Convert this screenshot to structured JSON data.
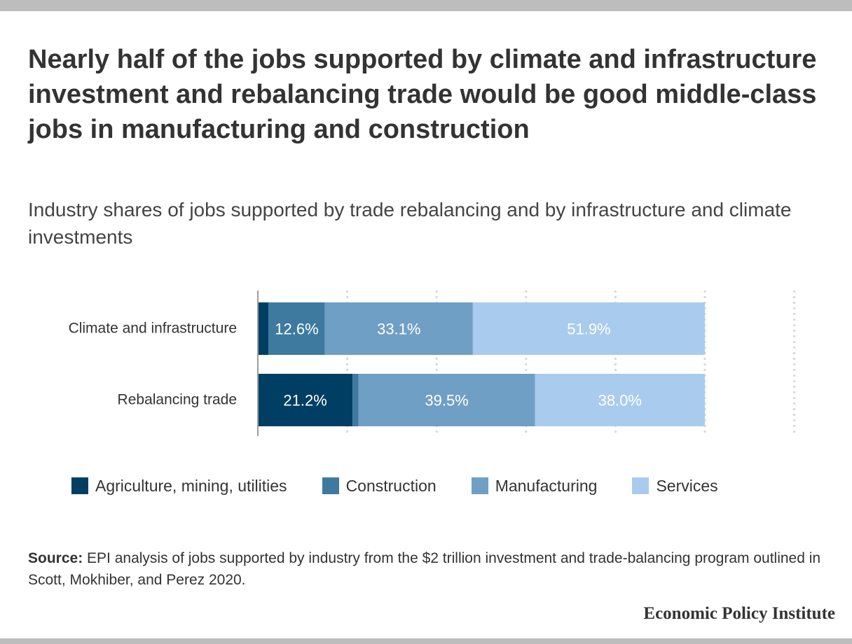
{
  "title": "Nearly half of the jobs supported by climate and infrastructure investment and rebalancing trade would be good middle-class jobs in manufacturing and construction",
  "subtitle": "Industry shares of jobs supported by trade rebalancing and by infrastructure and climate investments",
  "source": {
    "label": "Source:",
    "text": " EPI analysis of jobs supported by industry from the $2 trillion investment and trade-balancing program outlined in Scott, Mokhiber, and Perez 2020."
  },
  "brand": "Economic Policy Institute",
  "chart_data": {
    "type": "bar",
    "orientation": "horizontal",
    "stacked": true,
    "categories": [
      "Climate and infrastructure",
      "Rebalancing trade"
    ],
    "series": [
      {
        "name": "Agriculture, mining, utilities",
        "color": "#003f63",
        "values": [
          2.4,
          21.2
        ],
        "labels": [
          "",
          "21.2%"
        ]
      },
      {
        "name": "Construction",
        "color": "#3e7aa0",
        "values": [
          12.6,
          1.3
        ],
        "labels": [
          "12.6%",
          ""
        ]
      },
      {
        "name": "Manufacturing",
        "color": "#709fc5",
        "values": [
          33.1,
          39.5
        ],
        "labels": [
          "33.1%",
          "39.5%"
        ]
      },
      {
        "name": "Services",
        "color": "#a9ccee",
        "values": [
          51.9,
          38.0
        ],
        "labels": [
          "51.9%",
          "38.0%"
        ]
      }
    ],
    "xlim": [
      0,
      120
    ],
    "grid": true,
    "legend": "bottom"
  }
}
